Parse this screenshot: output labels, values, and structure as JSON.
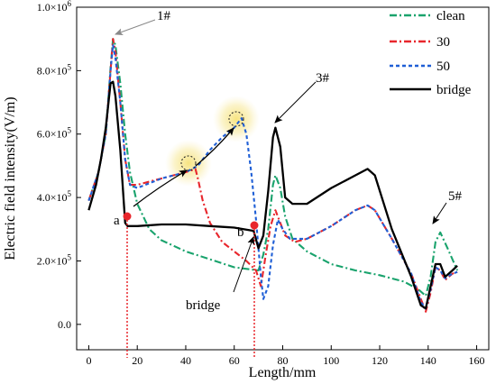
{
  "chart_data": {
    "type": "line",
    "xlabel": "Length/mm",
    "ylabel": "Electric field intensity(V/m)",
    "xlim": [
      -5,
      165
    ],
    "ylim": [
      -80000,
      1000000
    ],
    "x_ticks": [
      0,
      20,
      40,
      60,
      80,
      100,
      120,
      140,
      160
    ],
    "x_tick_labels": [
      "0",
      "20",
      "40",
      "60",
      "80",
      "100",
      "120",
      "140",
      "160"
    ],
    "y_ticks": [
      0,
      200000,
      400000,
      600000,
      800000,
      1000000
    ],
    "y_tick_mantissas": [
      "0.0",
      "2.0×10",
      "4.0×10",
      "6.0×10",
      "8.0×10",
      "1.0×10"
    ],
    "y_tick_exponents": [
      "",
      "5",
      "5",
      "5",
      "5",
      "6"
    ],
    "legend_position": "top-right",
    "series": [
      {
        "name": "clean",
        "color": "#1aa36d",
        "dash": "dashdot",
        "points": [
          [
            0,
            390000
          ],
          [
            4,
            480000
          ],
          [
            7,
            600000
          ],
          [
            9,
            810000
          ],
          [
            10,
            900000
          ],
          [
            11,
            880000
          ],
          [
            13,
            760000
          ],
          [
            15,
            600000
          ],
          [
            17,
            480000
          ],
          [
            20,
            380000
          ],
          [
            25,
            300000
          ],
          [
            30,
            265000
          ],
          [
            40,
            230000
          ],
          [
            50,
            205000
          ],
          [
            60,
            180000
          ],
          [
            70,
            170000
          ],
          [
            72,
            220000
          ],
          [
            74,
            300000
          ],
          [
            76,
            440000
          ],
          [
            77,
            470000
          ],
          [
            79,
            430000
          ],
          [
            81,
            340000
          ],
          [
            84,
            270000
          ],
          [
            90,
            230000
          ],
          [
            100,
            190000
          ],
          [
            110,
            170000
          ],
          [
            120,
            155000
          ],
          [
            130,
            135000
          ],
          [
            136,
            110000
          ],
          [
            139,
            90000
          ],
          [
            141,
            150000
          ],
          [
            143,
            260000
          ],
          [
            145,
            290000
          ],
          [
            148,
            240000
          ],
          [
            152,
            170000
          ]
        ]
      },
      {
        "name": "30",
        "color": "#e8262c",
        "dash": "dashdotshort",
        "points": [
          [
            0,
            390000
          ],
          [
            4,
            480000
          ],
          [
            7,
            600000
          ],
          [
            9,
            800000
          ],
          [
            10,
            900000
          ],
          [
            11,
            860000
          ],
          [
            13,
            700000
          ],
          [
            15,
            520000
          ],
          [
            17,
            440000
          ],
          [
            20,
            440000
          ],
          [
            30,
            460000
          ],
          [
            40,
            480000
          ],
          [
            44,
            490000
          ],
          [
            45,
            460000
          ],
          [
            47,
            390000
          ],
          [
            50,
            320000
          ],
          [
            55,
            260000
          ],
          [
            60,
            230000
          ],
          [
            65,
            200000
          ],
          [
            69,
            170000
          ],
          [
            71,
            120000
          ],
          [
            73,
            220000
          ],
          [
            75,
            310000
          ],
          [
            77,
            360000
          ],
          [
            79,
            320000
          ],
          [
            81,
            280000
          ],
          [
            85,
            260000
          ],
          [
            90,
            270000
          ],
          [
            100,
            310000
          ],
          [
            110,
            360000
          ],
          [
            115,
            375000
          ],
          [
            118,
            360000
          ],
          [
            125,
            270000
          ],
          [
            133,
            160000
          ],
          [
            137,
            80000
          ],
          [
            139,
            40000
          ],
          [
            141,
            100000
          ],
          [
            143,
            180000
          ],
          [
            145,
            170000
          ],
          [
            147,
            140000
          ],
          [
            150,
            160000
          ],
          [
            152,
            165000
          ]
        ]
      },
      {
        "name": "50",
        "color": "#1f5fd6",
        "dash": "dashed",
        "points": [
          [
            0,
            390000
          ],
          [
            4,
            480000
          ],
          [
            7,
            600000
          ],
          [
            9,
            800000
          ],
          [
            10,
            880000
          ],
          [
            11,
            840000
          ],
          [
            13,
            700000
          ],
          [
            15,
            520000
          ],
          [
            17,
            440000
          ],
          [
            20,
            430000
          ],
          [
            30,
            460000
          ],
          [
            40,
            480000
          ],
          [
            45,
            500000
          ],
          [
            50,
            550000
          ],
          [
            55,
            590000
          ],
          [
            60,
            620000
          ],
          [
            63,
            650000
          ],
          [
            65,
            600000
          ],
          [
            67,
            480000
          ],
          [
            69,
            330000
          ],
          [
            71,
            150000
          ],
          [
            72,
            80000
          ],
          [
            74,
            120000
          ],
          [
            76,
            250000
          ],
          [
            78,
            330000
          ],
          [
            80,
            300000
          ],
          [
            83,
            270000
          ],
          [
            90,
            270000
          ],
          [
            100,
            310000
          ],
          [
            110,
            360000
          ],
          [
            115,
            375000
          ],
          [
            118,
            360000
          ],
          [
            125,
            270000
          ],
          [
            133,
            160000
          ],
          [
            137,
            70000
          ],
          [
            139,
            50000
          ],
          [
            141,
            110000
          ],
          [
            143,
            180000
          ],
          [
            145,
            170000
          ],
          [
            147,
            145000
          ],
          [
            150,
            160000
          ],
          [
            152,
            165000
          ]
        ]
      },
      {
        "name": "bridge",
        "color": "#000000",
        "dash": "solid",
        "points": [
          [
            0,
            360000
          ],
          [
            3,
            440000
          ],
          [
            5,
            520000
          ],
          [
            7,
            620000
          ],
          [
            9,
            760000
          ],
          [
            10,
            765000
          ],
          [
            11,
            720000
          ],
          [
            13,
            550000
          ],
          [
            15,
            320000
          ],
          [
            16,
            310000
          ],
          [
            20,
            310000
          ],
          [
            30,
            315000
          ],
          [
            40,
            315000
          ],
          [
            50,
            310000
          ],
          [
            60,
            305000
          ],
          [
            68,
            295000
          ],
          [
            70,
            240000
          ],
          [
            72,
            280000
          ],
          [
            74,
            420000
          ],
          [
            76,
            590000
          ],
          [
            77,
            620000
          ],
          [
            79,
            560000
          ],
          [
            81,
            400000
          ],
          [
            84,
            380000
          ],
          [
            90,
            380000
          ],
          [
            100,
            430000
          ],
          [
            110,
            470000
          ],
          [
            115,
            490000
          ],
          [
            118,
            470000
          ],
          [
            125,
            300000
          ],
          [
            133,
            150000
          ],
          [
            137,
            60000
          ],
          [
            139,
            50000
          ],
          [
            141,
            120000
          ],
          [
            143,
            190000
          ],
          [
            145,
            190000
          ],
          [
            147,
            150000
          ],
          [
            150,
            170000
          ],
          [
            152,
            185000
          ]
        ]
      }
    ],
    "annotations": {
      "label_1": "1#",
      "label_3": "3#",
      "label_5": "5#",
      "label_a": "a",
      "label_b": "b",
      "label_bridge": "bridge"
    }
  }
}
